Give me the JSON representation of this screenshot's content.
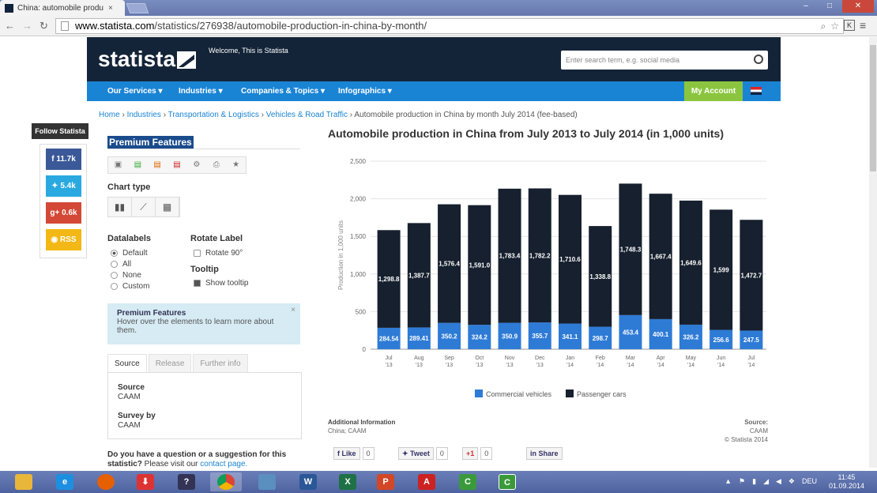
{
  "browser": {
    "tab_title": "China: automobile produ",
    "tab_close": "×",
    "url_domain": "www.statista.com",
    "url_path": "/statistics/276938/automobile-production-in-china-by-month/",
    "window_buttons": [
      "–",
      "□",
      "✕"
    ]
  },
  "header": {
    "logo": "statista",
    "welcome": "Welcome, This is Statista",
    "search_placeholder": "Enter search term, e.g. social media"
  },
  "navbar": {
    "items": [
      "Our Services",
      "Industries",
      "Companies & Topics",
      "Infographics"
    ],
    "my_account": "My Account"
  },
  "breadcrumb": {
    "home": "Home",
    "industries": "Industries",
    "transport": "Transportation & Logistics",
    "vehicles": "Vehicles & Road Traffic",
    "current": "Automobile production in China by month July 2014 (fee-based)"
  },
  "social": {
    "follow": "Follow Statista",
    "facebook": "11.7k",
    "twitter": "5.4k",
    "gplus": "0.6k",
    "rss": "RSS"
  },
  "panel": {
    "premium_title": "Premium Features",
    "chart_type": "Chart type",
    "datalabels": "Datalabels",
    "datalabel_options": [
      "Default",
      "All",
      "None",
      "Custom"
    ],
    "rotate_label": "Rotate Label",
    "rotate_option": "Rotate 90°",
    "tooltip": "Tooltip",
    "tooltip_option": "Show tooltip",
    "info_title": "Premium Features",
    "info_text": "Hover over the elements to learn more about them.",
    "tabs": [
      "Source",
      "Release",
      "Further info"
    ],
    "source_label": "Source",
    "source_value": "CAAM",
    "survey_label": "Survey by",
    "survey_value": "CAAM",
    "question_bold": "Do you have a question or a suggestion for this statistic?",
    "question_text": " Please visit our ",
    "question_link": "contact page."
  },
  "chart_data": {
    "type": "bar",
    "title": "Automobile production in China from July 2013 to July 2014 (in 1,000 units)",
    "ylabel": "Production in 1,000 units",
    "ylim": [
      0,
      2500
    ],
    "yticks": [
      "0",
      "500",
      "1,000",
      "1,500",
      "2,000",
      "2,500"
    ],
    "stacked": true,
    "categories": [
      [
        "Jul",
        "'13"
      ],
      [
        "Aug",
        "'13"
      ],
      [
        "Sep",
        "'13"
      ],
      [
        "Oct",
        "'13"
      ],
      [
        "Nov",
        "'13"
      ],
      [
        "Dec",
        "'13"
      ],
      [
        "Jan",
        "'14"
      ],
      [
        "Feb",
        "'14"
      ],
      [
        "Mar",
        "'14"
      ],
      [
        "Apr",
        "'14"
      ],
      [
        "May",
        "'14"
      ],
      [
        "Jun",
        "'14"
      ],
      [
        "Jul",
        "'14"
      ]
    ],
    "series": [
      {
        "name": "Commercial vehicles",
        "color": "#2e7bd6",
        "values": [
          284.54,
          289.41,
          350.2,
          324.2,
          350.9,
          355.7,
          341.1,
          298.7,
          453.4,
          400.1,
          326.2,
          256.6,
          247.5
        ],
        "labels": [
          "284.54",
          "289.41",
          "350.2",
          "324.2",
          "350.9",
          "355.7",
          "341.1",
          "298.7",
          "453.4",
          "400.1",
          "326.2",
          "256.6",
          "247.5"
        ]
      },
      {
        "name": "Passenger cars",
        "color": "#16202e",
        "values": [
          1298.8,
          1387.7,
          1576.4,
          1591.0,
          1783.4,
          1782.2,
          1710.6,
          1338.8,
          1748.3,
          1667.4,
          1649.6,
          1599,
          1472.7
        ],
        "labels": [
          "1,298.8",
          "1,387.7",
          "1,576.4",
          "1,591.0",
          "1,783.4",
          "1,782.2",
          "1,710.6",
          "1,338.8",
          "1,748.3",
          "1,667.4",
          "1,649.6",
          "1,599",
          "1,472.7"
        ]
      }
    ],
    "legend_position": "bottom",
    "grid": true
  },
  "footer": {
    "add_info_title": "Additional Information",
    "add_info_text": "China; CAAM",
    "source_title": "Source:",
    "source_text": "CAAM",
    "copyright": "© Statista 2014",
    "like": "Like",
    "like_count": "0",
    "tweet": "Tweet",
    "tweet_count": "0",
    "gplus": "+1",
    "gplus_count": "0",
    "share": "Share"
  },
  "taskbar": {
    "lang": "DEU",
    "time": "11:45",
    "date": "01.09.2014"
  }
}
